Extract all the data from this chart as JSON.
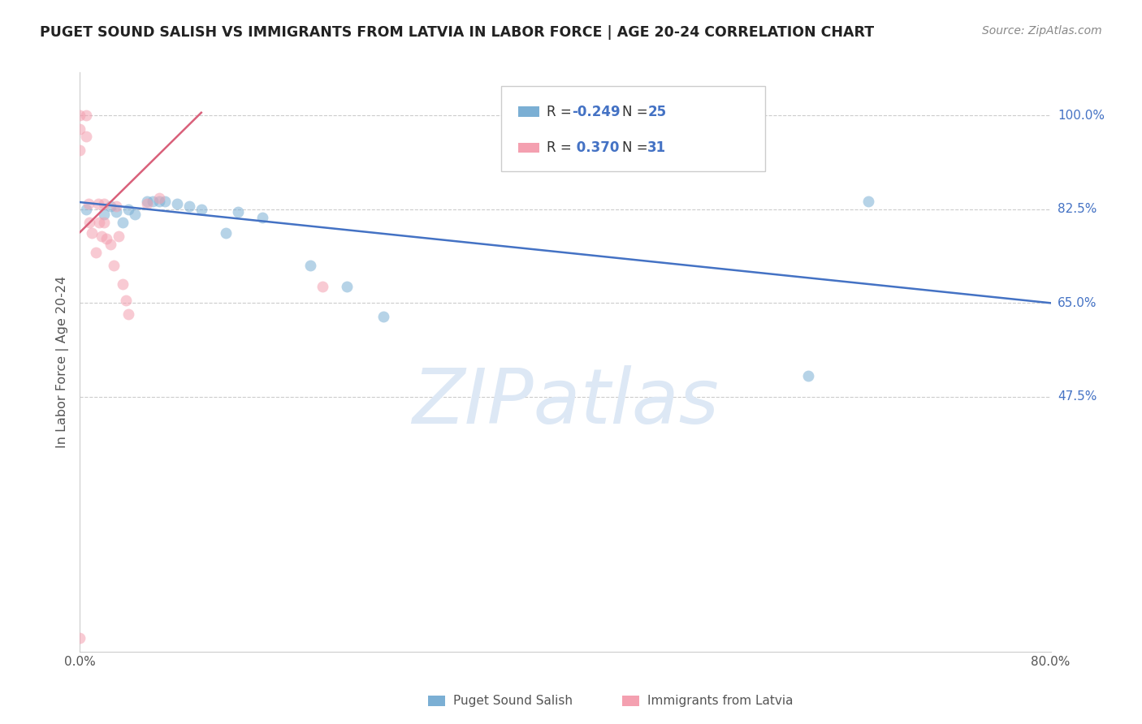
{
  "title": "PUGET SOUND SALISH VS IMMIGRANTS FROM LATVIA IN LABOR FORCE | AGE 20-24 CORRELATION CHART",
  "source": "Source: ZipAtlas.com",
  "ylabel": "In Labor Force | Age 20-24",
  "xlim": [
    0.0,
    0.8
  ],
  "ylim": [
    0.0,
    1.08
  ],
  "yticks": [
    0.475,
    0.65,
    0.825,
    1.0
  ],
  "ytick_labels": [
    "47.5%",
    "65.0%",
    "82.5%",
    "100.0%"
  ],
  "xticks": [
    0.0,
    0.1,
    0.2,
    0.3,
    0.4,
    0.5,
    0.6,
    0.7,
    0.8
  ],
  "xtick_labels": [
    "0.0%",
    "",
    "",
    "",
    "",
    "",
    "",
    "",
    "80.0%"
  ],
  "blue_scatter_x": [
    0.005,
    0.02,
    0.025,
    0.03,
    0.035,
    0.04,
    0.045,
    0.055,
    0.06,
    0.065,
    0.07,
    0.08,
    0.09,
    0.1,
    0.12,
    0.13,
    0.15,
    0.19,
    0.22,
    0.25,
    0.6,
    0.65
  ],
  "blue_scatter_y": [
    0.825,
    0.815,
    0.83,
    0.82,
    0.8,
    0.825,
    0.815,
    0.84,
    0.84,
    0.84,
    0.84,
    0.835,
    0.83,
    0.825,
    0.78,
    0.82,
    0.81,
    0.72,
    0.68,
    0.625,
    0.515,
    0.84
  ],
  "pink_scatter_x": [
    0.0,
    0.0,
    0.0,
    0.005,
    0.005,
    0.007,
    0.008,
    0.01,
    0.013,
    0.015,
    0.016,
    0.018,
    0.02,
    0.02,
    0.022,
    0.025,
    0.028,
    0.03,
    0.032,
    0.035,
    0.038,
    0.04,
    0.055,
    0.065,
    0.2,
    0.0
  ],
  "pink_scatter_y": [
    1.0,
    0.975,
    0.935,
    1.0,
    0.96,
    0.835,
    0.8,
    0.78,
    0.745,
    0.835,
    0.8,
    0.775,
    0.835,
    0.8,
    0.77,
    0.76,
    0.72,
    0.83,
    0.775,
    0.685,
    0.655,
    0.63,
    0.835,
    0.845,
    0.68,
    0.025
  ],
  "blue_line_x": [
    0.0,
    0.8
  ],
  "blue_line_y": [
    0.838,
    0.65
  ],
  "pink_line_x": [
    0.0,
    0.1
  ],
  "pink_line_y": [
    0.782,
    1.005
  ],
  "background_color": "#ffffff",
  "title_color": "#222222",
  "label_color": "#555555",
  "right_label_color": "#4472c4",
  "watermark_text": "ZIPatlas",
  "watermark_color": "#dde8f5",
  "blue_scatter_color": "#7bafd4",
  "pink_scatter_color": "#f4a0b0",
  "blue_line_color": "#4472c4",
  "pink_line_color": "#d9607a",
  "scatter_size": 100,
  "scatter_alpha": 0.55,
  "legend_r1_val": "-0.249",
  "legend_n1_val": "25",
  "legend_r2_val": "0.370",
  "legend_n2_val": "31"
}
